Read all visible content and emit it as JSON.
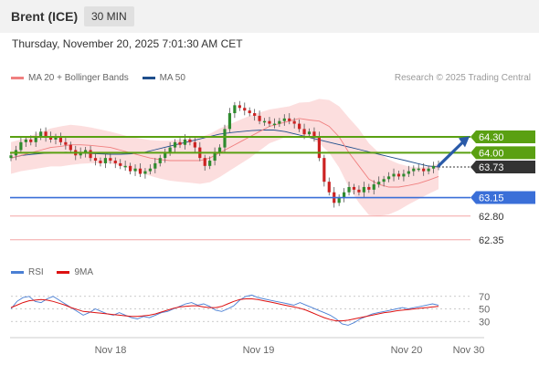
{
  "header": {
    "instrument": "Brent (ICE)",
    "timeframe": "30 MIN"
  },
  "timestamp": "Thursday, November 20, 2025 7:01:30 AM CET",
  "legend": [
    {
      "label": "MA 20 + Bollinger Bands",
      "color": "#f08080"
    },
    {
      "label": "MA 50",
      "color": "#1f4e8c"
    }
  ],
  "copyright": "Research © 2025 Trading Central",
  "colors": {
    "up": "#2e8b2e",
    "down": "#cc2222",
    "resistance": "#5aa012",
    "support": "#3a6fd8",
    "target": "#f4a6a6",
    "last": "#333333",
    "arrow": "#2a5aa8"
  },
  "chart_data": [
    {
      "type": "candlestick",
      "x_labels": [
        "Nov 18",
        "Nov 19",
        "Nov 20",
        "Nov 30"
      ],
      "ylim": [
        62.0,
        65.2
      ],
      "levels": [
        {
          "label": "64.30",
          "value": 64.3,
          "kind": "resistance"
        },
        {
          "label": "64.00",
          "value": 64.0,
          "kind": "resistance"
        },
        {
          "label": "63.73",
          "value": 63.73,
          "kind": "last"
        },
        {
          "label": "63.15",
          "value": 63.15,
          "kind": "support"
        },
        {
          "label": "62.80",
          "value": 62.8,
          "kind": "target"
        },
        {
          "label": "62.35",
          "value": 62.35,
          "kind": "target"
        }
      ],
      "closes": [
        63.95,
        64.05,
        64.2,
        64.25,
        64.2,
        64.3,
        64.4,
        64.3,
        64.25,
        64.3,
        64.2,
        64.15,
        64.05,
        63.95,
        64.0,
        64.05,
        63.9,
        63.85,
        63.8,
        63.9,
        63.85,
        63.8,
        63.75,
        63.75,
        63.65,
        63.7,
        63.6,
        63.65,
        63.7,
        63.8,
        63.9,
        64.0,
        64.1,
        64.2,
        64.15,
        64.25,
        64.2,
        64.1,
        63.9,
        63.75,
        63.85,
        64.0,
        64.1,
        64.45,
        64.75,
        64.9,
        64.85,
        64.8,
        64.75,
        64.7,
        64.6,
        64.6,
        64.55,
        64.55,
        64.6,
        64.65,
        64.6,
        64.55,
        64.45,
        64.35,
        64.4,
        64.3,
        63.9,
        63.45,
        63.25,
        63.05,
        63.15,
        63.25,
        63.35,
        63.3,
        63.25,
        63.35,
        63.3,
        63.4,
        63.45,
        63.5,
        63.55,
        63.6,
        63.55,
        63.6,
        63.65,
        63.7,
        63.7,
        63.65,
        63.7,
        63.75,
        63.73
      ],
      "ma20": [
        63.9,
        63.95,
        64.0,
        64.05,
        64.1,
        64.12,
        64.15,
        64.15,
        64.14,
        64.12,
        64.1,
        64.05,
        64.0,
        63.95,
        63.9,
        63.87,
        63.85,
        63.85,
        63.85,
        63.85,
        63.9,
        64.0,
        64.1,
        64.2,
        64.3,
        64.4,
        64.5,
        64.55,
        64.6,
        64.65,
        64.62,
        64.6,
        64.5,
        64.3,
        64.0,
        63.75,
        63.5,
        63.4,
        63.35,
        63.35,
        63.38,
        63.42,
        63.48,
        63.55
      ],
      "ma50": [
        63.9,
        63.95,
        63.97,
        63.99,
        64.0,
        64.01,
        64.0,
        63.99,
        63.98,
        63.97,
        63.97,
        63.98,
        64.0,
        64.05,
        64.1,
        64.15,
        64.2,
        64.25,
        64.3,
        64.35,
        64.38,
        64.4,
        64.42,
        64.43,
        64.43,
        64.4,
        64.35,
        64.3,
        64.25,
        64.2,
        64.15,
        64.1,
        64.05,
        64.0,
        63.95,
        63.9,
        63.85,
        63.8,
        63.75,
        63.73
      ]
    },
    {
      "type": "line",
      "title": "RSI",
      "series": [
        {
          "name": "RSI",
          "color": "#4a7fd4"
        },
        {
          "name": "9MA",
          "color": "#dd1111"
        }
      ],
      "y_ticks": [
        "70",
        "50",
        "30"
      ],
      "ylim": [
        10,
        90
      ],
      "rsi": [
        50,
        62,
        68,
        70,
        62,
        60,
        66,
        70,
        64,
        58,
        52,
        46,
        40,
        44,
        50,
        46,
        42,
        40,
        44,
        40,
        36,
        34,
        38,
        36,
        40,
        44,
        46,
        50,
        54,
        58,
        60,
        56,
        58,
        54,
        48,
        46,
        50,
        55,
        64,
        70,
        72,
        68,
        66,
        64,
        62,
        60,
        58,
        56,
        60,
        56,
        52,
        48,
        44,
        40,
        34,
        26,
        24,
        28,
        34,
        38,
        42,
        44,
        46,
        48,
        50,
        52,
        50,
        52,
        54,
        56,
        58,
        56
      ],
      "ma9": [
        52,
        56,
        60,
        63,
        64,
        65,
        64,
        62,
        59,
        56,
        52,
        49,
        46,
        45,
        44,
        43,
        42,
        41,
        40,
        39,
        38,
        38,
        39,
        40,
        42,
        45,
        48,
        51,
        53,
        54,
        55,
        55,
        53,
        52,
        52,
        54,
        58,
        62,
        65,
        66,
        66,
        65,
        63,
        61,
        59,
        57,
        55,
        53,
        51,
        48,
        44,
        40,
        36,
        33,
        31,
        31,
        32,
        34,
        36,
        38,
        40,
        42,
        44,
        45,
        47,
        48,
        49,
        50,
        51,
        52,
        53,
        54
      ]
    }
  ]
}
